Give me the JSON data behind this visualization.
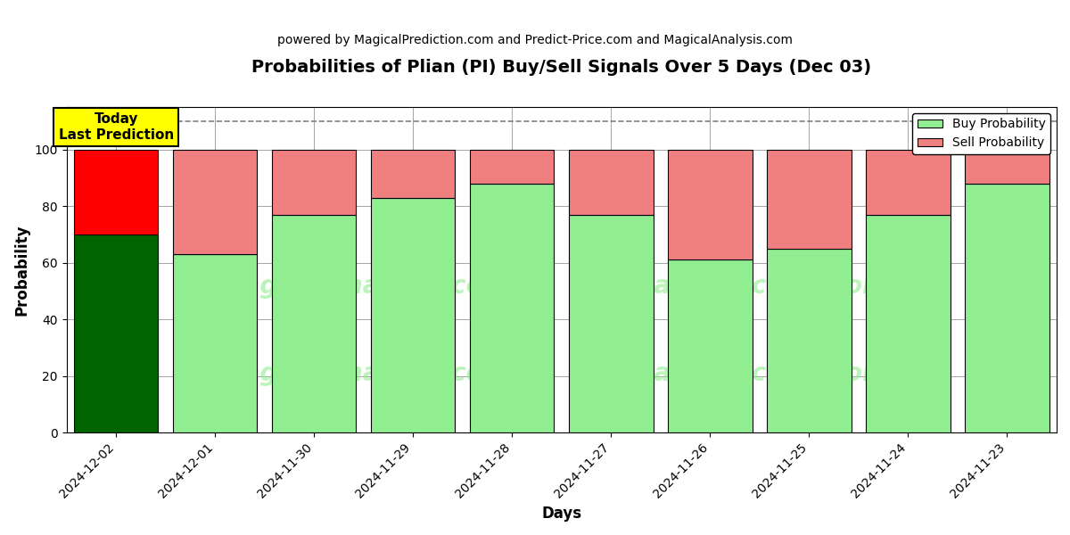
{
  "title": "Probabilities of Plian (PI) Buy/Sell Signals Over 5 Days (Dec 03)",
  "subtitle": "powered by MagicalPrediction.com and Predict-Price.com and MagicalAnalysis.com",
  "xlabel": "Days",
  "ylabel": "Probability",
  "dates": [
    "2024-12-02",
    "2024-12-01",
    "2024-11-30",
    "2024-11-29",
    "2024-11-28",
    "2024-11-27",
    "2024-11-26",
    "2024-11-25",
    "2024-11-24",
    "2024-11-23"
  ],
  "buy_probs": [
    70,
    63,
    77,
    83,
    88,
    77,
    61,
    65,
    77,
    88
  ],
  "sell_probs": [
    30,
    37,
    23,
    17,
    12,
    23,
    39,
    35,
    23,
    12
  ],
  "today_buy_color": "#006400",
  "today_sell_color": "#FF0000",
  "other_buy_color": "#90EE90",
  "other_sell_color": "#F08080",
  "today_label_bg": "#FFFF00",
  "today_label_text": "Today\nLast Prediction",
  "legend_buy_label": "Buy Probability",
  "legend_sell_label": "Sell Probability",
  "ylim": [
    0,
    115
  ],
  "yticks": [
    0,
    20,
    40,
    60,
    80,
    100
  ],
  "dashed_line_y": 110,
  "background_color": "#ffffff",
  "bar_edge_color": "#000000",
  "bar_width": 0.85,
  "title_fontsize": 14,
  "subtitle_fontsize": 10,
  "axis_label_fontsize": 12,
  "tick_fontsize": 10,
  "legend_fontsize": 10
}
